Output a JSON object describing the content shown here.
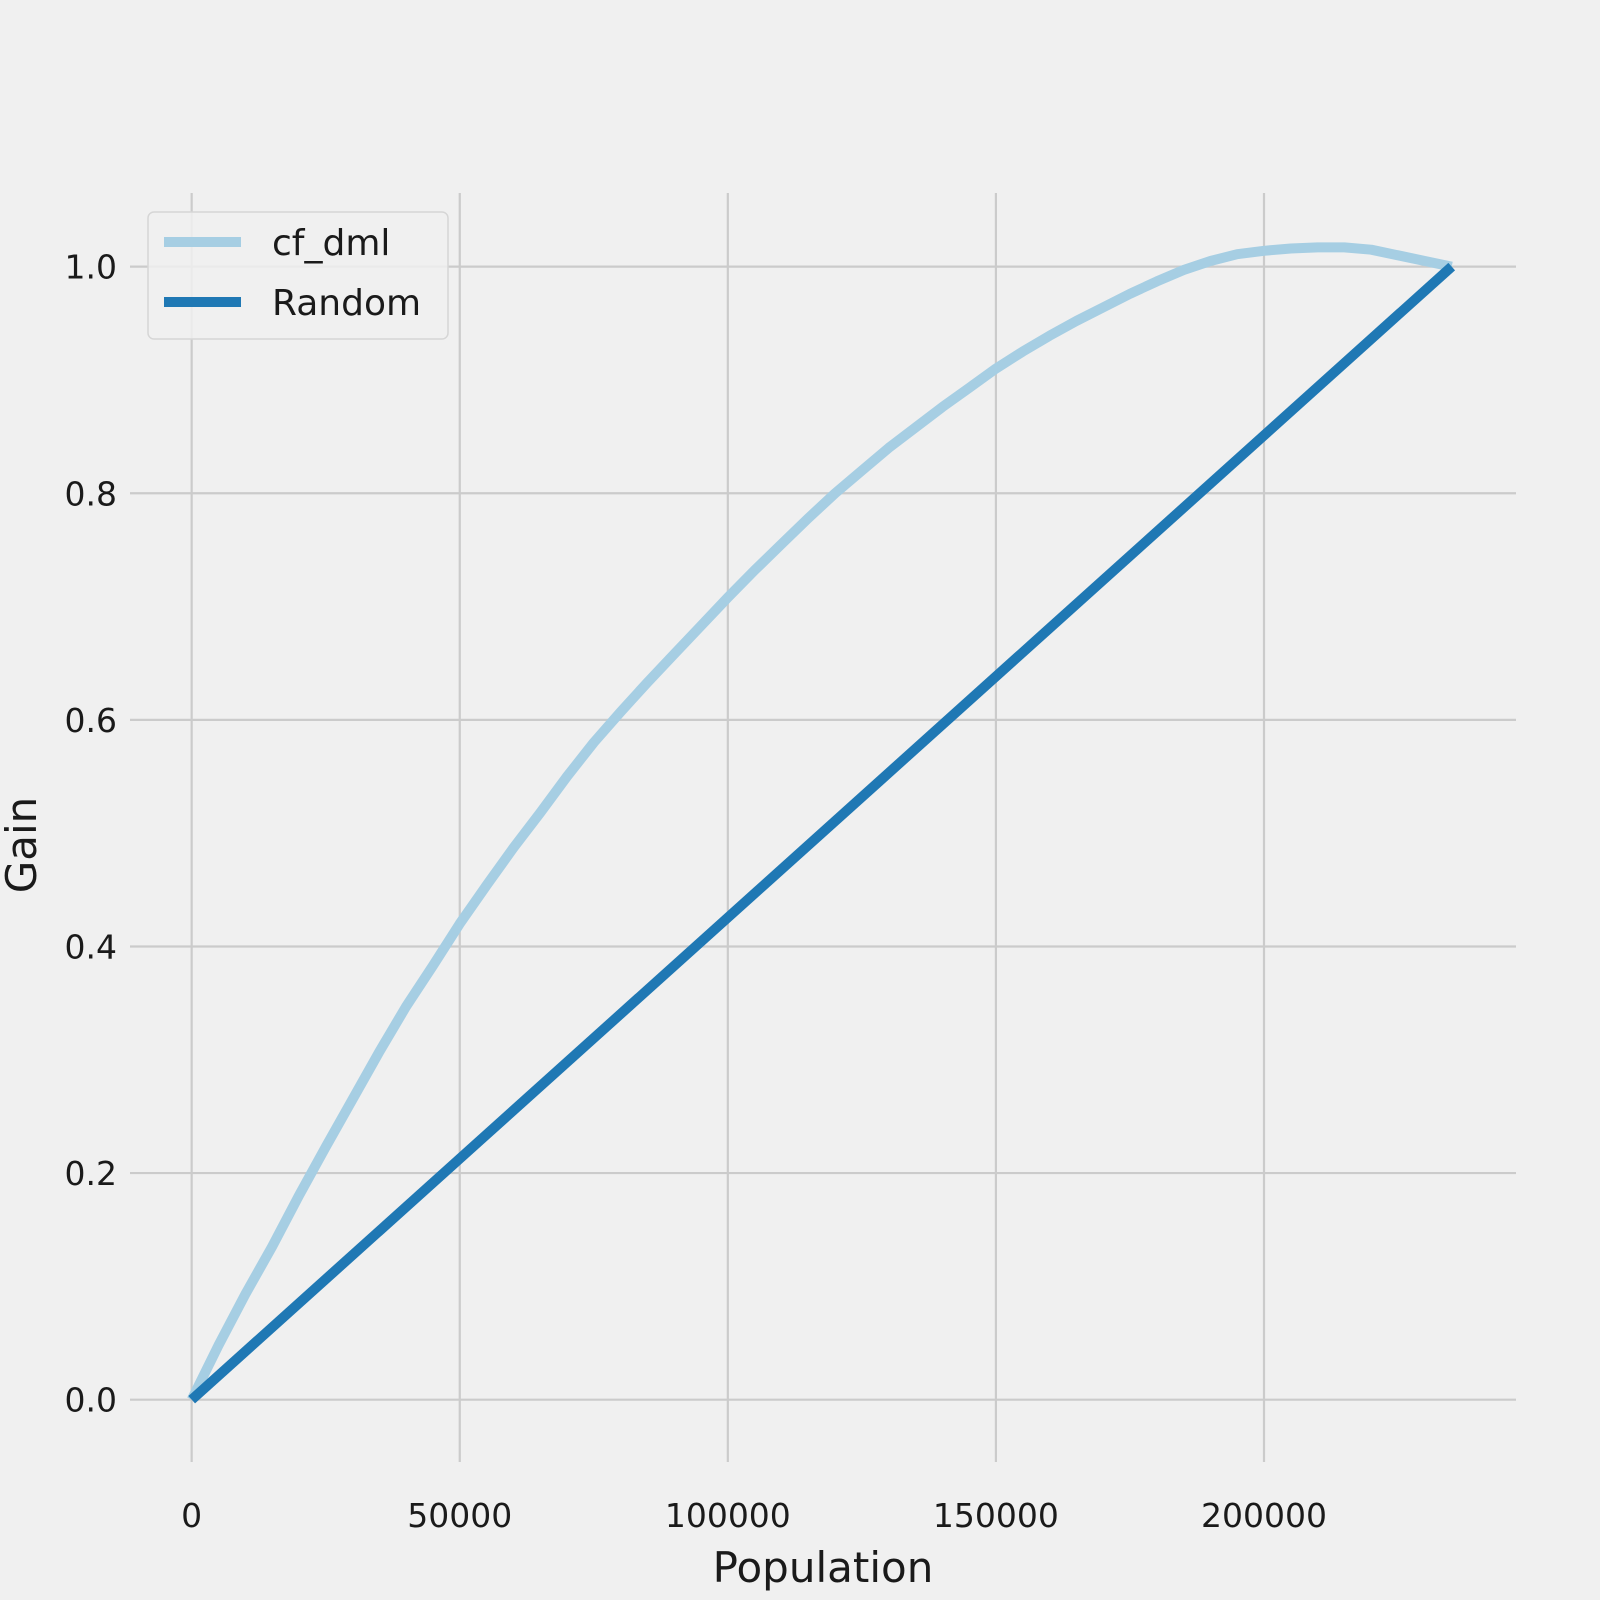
{
  "chart_data": {
    "type": "line",
    "xlabel": "Population",
    "ylabel": "Gain",
    "xlim": [
      -11500,
      247000
    ],
    "ylim": [
      -0.055,
      1.065
    ],
    "xticks": [
      0,
      50000,
      100000,
      150000,
      200000
    ],
    "xtick_labels": [
      "0",
      "50000",
      "100000",
      "150000",
      "200000"
    ],
    "yticks": [
      0.0,
      0.2,
      0.4,
      0.6,
      0.8,
      1.0
    ],
    "ytick_labels": [
      "0.0",
      "0.2",
      "0.4",
      "0.6",
      "0.8",
      "1.0"
    ],
    "grid": true,
    "legend_position": "top-left",
    "series": [
      {
        "name": "cf_dml",
        "color": "#a6cee3",
        "x": [
          0,
          5000,
          10000,
          15000,
          20000,
          25000,
          30000,
          35000,
          40000,
          45000,
          50000,
          55000,
          60000,
          65000,
          70000,
          75000,
          80000,
          85000,
          90000,
          95000,
          100000,
          105000,
          110000,
          115000,
          120000,
          125000,
          130000,
          135000,
          140000,
          145000,
          150000,
          155000,
          160000,
          165000,
          170000,
          175000,
          180000,
          185000,
          190000,
          195000,
          200000,
          205000,
          210000,
          215000,
          220000,
          225000,
          230000,
          235000
        ],
        "y": [
          0.0,
          0.048,
          0.093,
          0.135,
          0.18,
          0.223,
          0.265,
          0.307,
          0.347,
          0.383,
          0.42,
          0.454,
          0.487,
          0.518,
          0.55,
          0.58,
          0.607,
          0.633,
          0.658,
          0.683,
          0.708,
          0.732,
          0.755,
          0.778,
          0.8,
          0.82,
          0.84,
          0.858,
          0.876,
          0.893,
          0.91,
          0.925,
          0.939,
          0.952,
          0.964,
          0.976,
          0.987,
          0.997,
          1.005,
          1.011,
          1.014,
          1.016,
          1.017,
          1.017,
          1.015,
          1.01,
          1.005,
          1.0
        ]
      },
      {
        "name": "Random",
        "color": "#1f78b4",
        "x": [
          0,
          235000
        ],
        "y": [
          0.0,
          1.0
        ]
      }
    ]
  }
}
